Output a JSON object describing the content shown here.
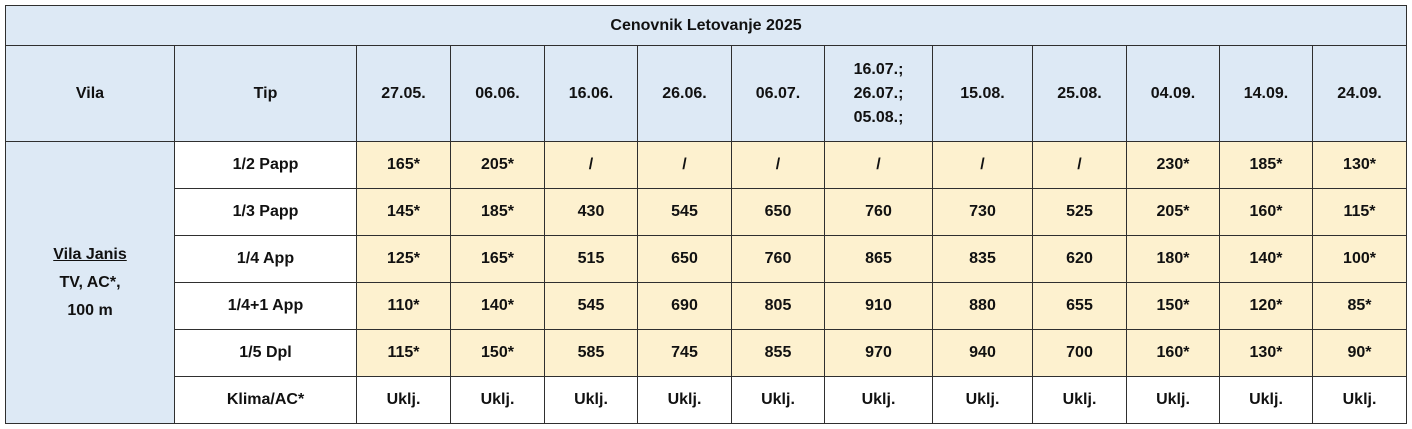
{
  "table": {
    "title": "Cenovnik Letovanje 2025",
    "header": [
      "Vila",
      "Tip",
      "27.05.",
      "06.06.",
      "16.06.",
      "26.06.",
      "06.07.",
      "16.07.;\n26.07.;\n05.08.;",
      "15.08.",
      "25.08.",
      "04.09.",
      "14.09.",
      "24.09."
    ],
    "vila": [
      "Vila Janis",
      "TV, AC*,",
      "100 m"
    ],
    "rows": [
      [
        "1/2 Papp",
        "165*",
        "205*",
        "/",
        "/",
        "/",
        "/",
        "/",
        "/",
        "230*",
        "185*",
        "130*"
      ],
      [
        "1/3 Papp",
        "145*",
        "185*",
        "430",
        "545",
        "650",
        "760",
        "730",
        "525",
        "205*",
        "160*",
        "115*"
      ],
      [
        "1/4 App",
        "125*",
        "165*",
        "515",
        "650",
        "760",
        "865",
        "835",
        "620",
        "180*",
        "140*",
        "100*"
      ],
      [
        "1/4+1 App",
        "110*",
        "140*",
        "545",
        "690",
        "805",
        "910",
        "880",
        "655",
        "150*",
        "120*",
        "85*"
      ],
      [
        "1/5  Dpl",
        "115*",
        "150*",
        "585",
        "745",
        "855",
        "970",
        "940",
        "700",
        "160*",
        "130*",
        "90*"
      ],
      [
        "Klima/AC*",
        "Uklj.",
        "Uklj.",
        "Uklj.",
        "Uklj.",
        "Uklj.",
        "Uklj.",
        "Uklj.",
        "Uklj.",
        "Uklj.",
        "Uklj.",
        "Uklj."
      ]
    ]
  }
}
